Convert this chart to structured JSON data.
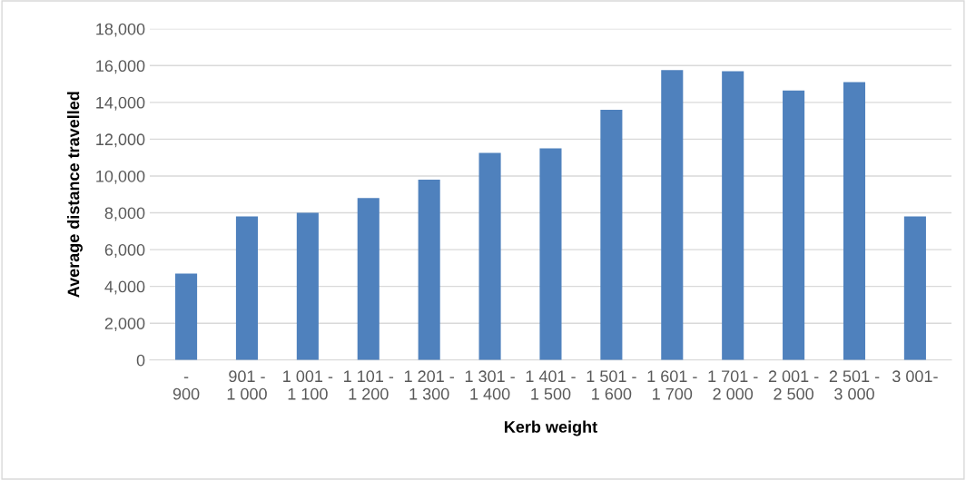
{
  "chart_data": {
    "type": "bar",
    "xlabel": "Kerb weight",
    "ylabel": "Average distance travelled",
    "categories": [
      "-\n900",
      "901 -\n1 000",
      "1 001 -\n1 100",
      "1 101 -\n1 200",
      "1 201 -\n1 300",
      "1 301 -\n1 400",
      "1 401 -\n1 500",
      "1 501 -\n1 600",
      "1 601 -\n1 700",
      "1 701 -\n2 000",
      "2 001 -\n2 500",
      "2 501 -\n3 000",
      "3 001-\n"
    ],
    "values": [
      4700,
      7800,
      8000,
      8800,
      9800,
      11250,
      11500,
      13600,
      15750,
      15700,
      14650,
      15100,
      7800
    ],
    "color": "#4f81bd",
    "ylim": [
      0,
      18000
    ],
    "yticks": [
      0,
      {
        "value": 2000,
        "label": "2,000"
      },
      {
        "value": 4000,
        "label": "4,000"
      },
      {
        "value": 6000,
        "label": "6,000"
      },
      {
        "value": 8000,
        "label": "8,000"
      },
      {
        "value": 10000,
        "label": "10,000"
      },
      {
        "value": 12000,
        "label": "12,000"
      },
      {
        "value": 14000,
        "label": "14,000"
      },
      {
        "value": 16000,
        "label": "16,000"
      },
      {
        "value": 18000,
        "label": "18,000"
      }
    ],
    "grid": "y"
  }
}
